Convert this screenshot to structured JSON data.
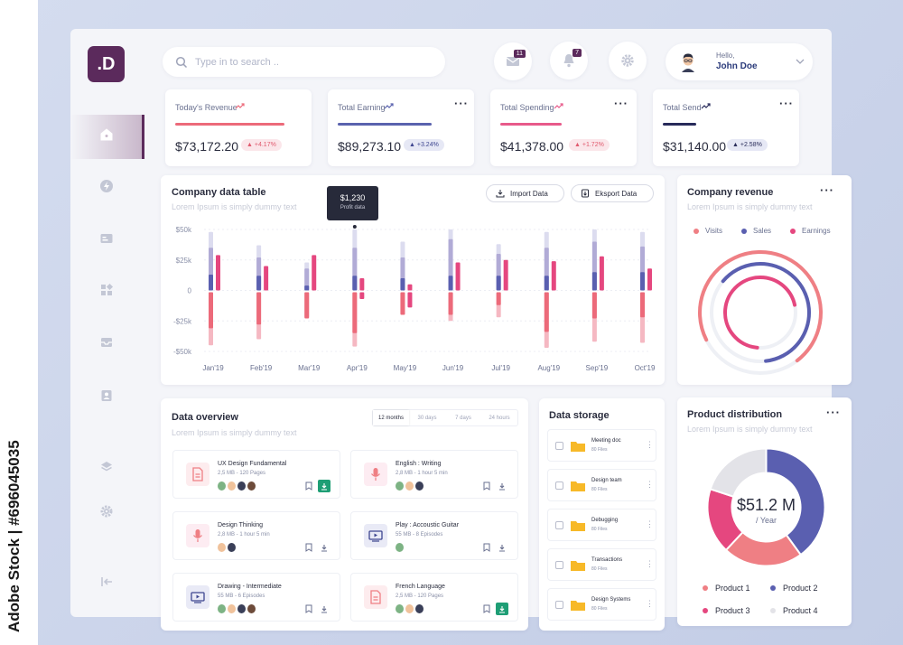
{
  "stock_side": {
    "label": "Adobe Stock | #696045035"
  },
  "brand": {
    "logo_text": ".D"
  },
  "search": {
    "placeholder": "Type in to search .."
  },
  "header": {
    "mail_badge": "11",
    "bell_badge": "7",
    "greeting": "Hello,",
    "user_name": "John Doe"
  },
  "sidebar": {
    "items": [
      "home-icon",
      "bolt-icon",
      "card-icon",
      "widgets-icon",
      "inbox-icon",
      "contact-icon",
      "layers-icon",
      "settings-icon",
      "logout-icon"
    ],
    "active": "home-icon"
  },
  "stats": [
    {
      "title": "Today's Revenue",
      "value": "$73,172.20",
      "change": "+4.17%",
      "color": "#ec6a7a"
    },
    {
      "title": "Total Earning",
      "value": "$89,273.10",
      "change": "+3.24%",
      "color": "#5a62ae"
    },
    {
      "title": "Total Spending",
      "value": "$41,378.00",
      "change": "+1.72%",
      "color": "#e85a8a"
    },
    {
      "title": "Total Send",
      "value": "$31,140.00",
      "change": "+2.58%",
      "color": "#272a5a"
    }
  ],
  "company_table": {
    "title": "Company data table",
    "subtitle": "Lorem Ipsum is simply dummy text",
    "import_label": "Import Data",
    "export_label": "Eksport Data",
    "tooltip_value": "$1,230",
    "tooltip_label": "Profit data"
  },
  "chart_data": {
    "type": "bar",
    "categories": [
      "Jan'19",
      "Feb'19",
      "Mar'19",
      "Apr'19",
      "May'19",
      "Jun'19",
      "Jul'19",
      "Aug'19",
      "Sep'19",
      "Oct'19"
    ],
    "y_tick_labels": [
      "$50k",
      "$25k",
      "0",
      "-$25k",
      "-$50k"
    ],
    "ylim": [
      -50000,
      50000
    ],
    "series": [
      {
        "values": [
          48000,
          37000,
          23000,
          50000,
          40000,
          50000,
          38000,
          48000,
          50000,
          48000
        ],
        "color": "#dcdcef"
      },
      {
        "values": [
          35000,
          27000,
          18000,
          35000,
          27000,
          42000,
          30000,
          35000,
          40000,
          36000
        ],
        "color": "#b1abd6"
      },
      {
        "values": [
          13000,
          12000,
          4000,
          12000,
          10000,
          12000,
          12000,
          12000,
          15000,
          15000
        ],
        "color": "#5a5fb0"
      },
      {
        "values": [
          29000,
          20000,
          29000,
          10000,
          5000,
          23000,
          25000,
          24000,
          28000,
          18000
        ],
        "color": "#e5477f"
      },
      {
        "values": [
          -31000,
          -28000,
          -23000,
          -35000,
          -20000,
          -20000,
          -12000,
          -34000,
          -23000,
          -22000
        ],
        "color": "#ec6a7a"
      },
      {
        "values": [
          -45000,
          -40000,
          -22000,
          -46000,
          -20000,
          -25000,
          -22000,
          -47000,
          -42000,
          -43000
        ],
        "color": "#f5b8c2"
      },
      {
        "values": [
          0,
          0,
          0,
          -7000,
          -14000,
          0,
          0,
          0,
          0,
          0
        ],
        "color": "#e5477f"
      }
    ]
  },
  "revenue": {
    "title": "Company revenue",
    "subtitle": "Lorem Ipsum is simply dummy text",
    "legend": [
      {
        "label": "Visits",
        "color": "#ef7f84"
      },
      {
        "label": "Sales",
        "color": "#5a5fb0"
      },
      {
        "label": "Earnings",
        "color": "#e5477f"
      }
    ],
    "rings": [
      {
        "label": "Visits",
        "fraction": 0.72,
        "color": "#ef7f84"
      },
      {
        "label": "Sales",
        "fraction": 0.62,
        "color": "#5a5fb0"
      },
      {
        "label": "Earnings",
        "fraction": 0.7,
        "color": "#e5477f"
      }
    ]
  },
  "overview": {
    "title": "Data overview",
    "subtitle": "Lorem Ipsum is simply dummy text",
    "tabs": [
      "12 months",
      "30 days",
      "7 days",
      "24 hours"
    ],
    "active_tab": "12 months",
    "courses": [
      {
        "name": "UX Design Fundamental",
        "meta": "2,5 MB - 120 Pages",
        "icon": "document-icon",
        "downloaded": true
      },
      {
        "name": "English : Writing",
        "meta": "2,8 MB - 1 hour 5 min",
        "icon": "microphone-icon",
        "downloaded": false
      },
      {
        "name": "Design Thinking",
        "meta": "2,8 MB - 1 hour 5 min",
        "icon": "microphone-icon",
        "downloaded": false
      },
      {
        "name": "Play : Accoustic Guitar",
        "meta": "55 MB - 8 Episodes",
        "icon": "video-icon",
        "downloaded": false
      },
      {
        "name": "Drawing - Intermediate",
        "meta": "55 MB - 6 Episodes",
        "icon": "video-icon",
        "downloaded": false
      },
      {
        "name": "French Language",
        "meta": "2,5 MB - 120 Pages",
        "icon": "document-icon",
        "downloaded": true
      }
    ]
  },
  "storage": {
    "title": "Data storage",
    "folders": [
      {
        "name": "Meeting doc",
        "count": "80 Files"
      },
      {
        "name": "Design team",
        "count": "80 Files"
      },
      {
        "name": "Debugging",
        "count": "80 Files"
      },
      {
        "name": "Transactions",
        "count": "80 Files"
      },
      {
        "name": "Design Systems",
        "count": "80 Files"
      }
    ]
  },
  "distribution": {
    "title": "Product distribution",
    "subtitle": "Lorem Ipsum is simply dummy text",
    "center_value": "$51.2 M",
    "center_label": "/ Year",
    "slices": [
      {
        "label": "Product 2",
        "share": 0.4,
        "color": "#5a5fb0"
      },
      {
        "label": "Product 1",
        "share": 0.22,
        "color": "#ef7f84"
      },
      {
        "label": "Product 3",
        "share": 0.18,
        "color": "#e5477f"
      },
      {
        "label": "Product 4",
        "share": 0.2,
        "color": "#e3e3e8"
      }
    ],
    "legend": [
      {
        "label": "Product 1",
        "color": "#ef7f84"
      },
      {
        "label": "Product 2",
        "color": "#5a5fb0"
      },
      {
        "label": "Product 3",
        "color": "#e5477f"
      },
      {
        "label": "Product 4",
        "color": "#e3e3e8"
      }
    ]
  }
}
